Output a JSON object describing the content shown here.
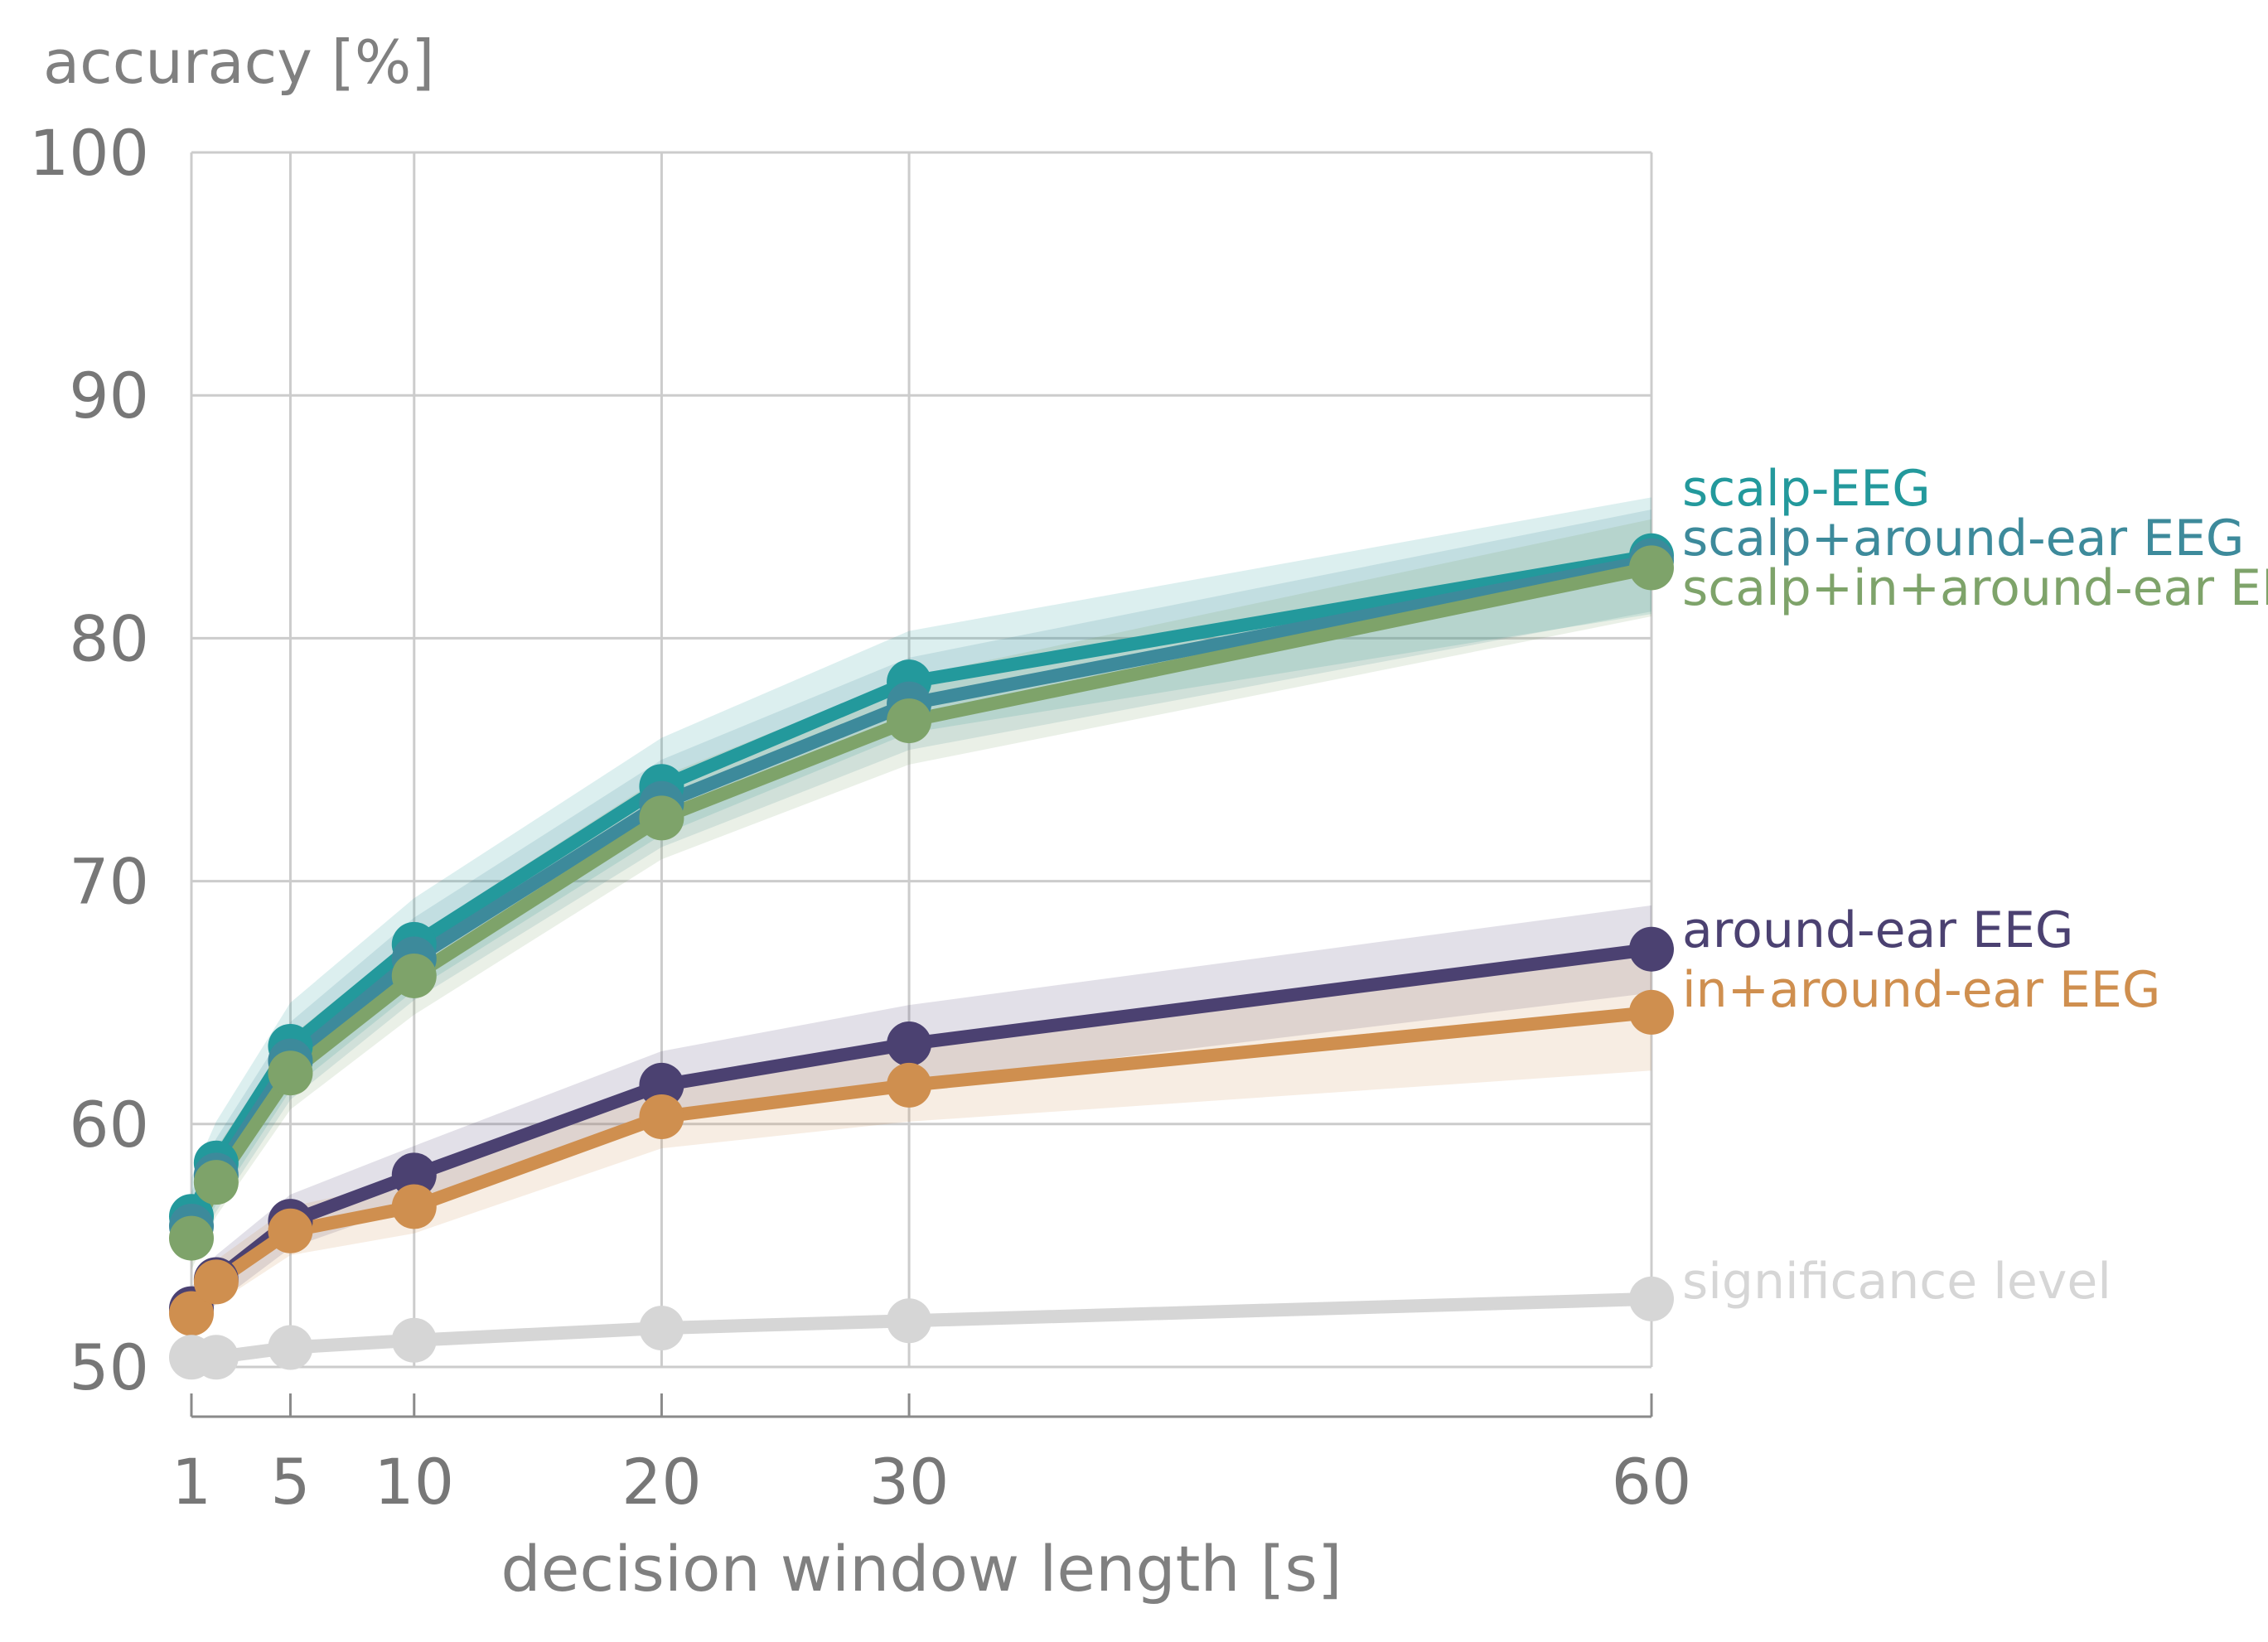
{
  "chart_data": {
    "type": "line",
    "ylabel": "accuracy [%]",
    "xlabel": "decision window length [s]",
    "x": [
      1,
      2,
      5,
      10,
      20,
      30,
      60
    ],
    "x_ticks": [
      1,
      5,
      10,
      20,
      30,
      60
    ],
    "y_ticks": [
      50,
      60,
      70,
      80,
      90,
      100
    ],
    "xlim": [
      1,
      60
    ],
    "ylim": [
      50,
      100
    ],
    "grid": true,
    "series": [
      {
        "name": "scalp-EEG",
        "color": "#23999c",
        "values": [
          56.2,
          58.4,
          63.2,
          67.4,
          73.9,
          78.2,
          83.4
        ],
        "band": [
          1.6,
          1.7,
          1.8,
          1.9,
          2.0,
          2.1,
          2.4
        ]
      },
      {
        "name": "scalp+around-ear EEG",
        "color": "#3d8a9b",
        "values": [
          55.8,
          57.9,
          62.6,
          66.8,
          73.2,
          77.3,
          83.2
        ],
        "band": [
          1.4,
          1.5,
          1.6,
          1.7,
          1.8,
          1.9,
          2.1
        ]
      },
      {
        "name": "scalp+in+around-ear EEG",
        "color": "#7ea36a",
        "values": [
          55.3,
          57.6,
          62.1,
          66.1,
          72.6,
          76.6,
          82.9
        ],
        "band": [
          1.3,
          1.4,
          1.5,
          1.6,
          1.7,
          1.8,
          2.0
        ]
      },
      {
        "name": "around-ear EEG",
        "color": "#4b4171",
        "values": [
          52.4,
          53.6,
          56.0,
          57.9,
          61.6,
          63.3,
          67.2
        ],
        "band": [
          0.9,
          1.0,
          1.1,
          1.2,
          1.4,
          1.6,
          1.8
        ]
      },
      {
        "name": "in+around-ear EEG",
        "color": "#cf8f4f",
        "values": [
          52.2,
          53.5,
          55.6,
          56.6,
          60.3,
          61.6,
          64.6
        ],
        "band": [
          0.8,
          0.9,
          1.0,
          1.1,
          1.3,
          1.5,
          2.4
        ]
      },
      {
        "name": "significance level",
        "color": "#d6d6d6",
        "values": [
          50.4,
          50.4,
          50.8,
          51.1,
          51.6,
          51.9,
          52.8
        ],
        "band": null
      }
    ]
  }
}
